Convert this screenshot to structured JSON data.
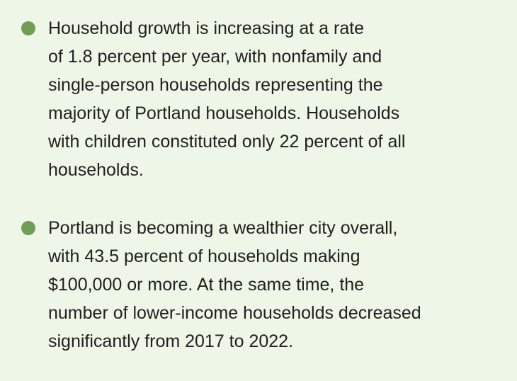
{
  "bullets": [
    {
      "lines": [
        "Household growth is increasing at a rate",
        "of 1.8 percent per year, with nonfamily and",
        "single-person households representing the",
        "majority of Portland households. Households",
        "with children constituted only 22 percent of all",
        "households."
      ]
    },
    {
      "lines": [
        "Portland is becoming a wealthier city overall,",
        "with 43.5 percent of households making",
        "$100,000 or more. At the same time, the",
        "number of lower-income households decreased",
        "significantly from 2017 to 2022."
      ]
    }
  ]
}
